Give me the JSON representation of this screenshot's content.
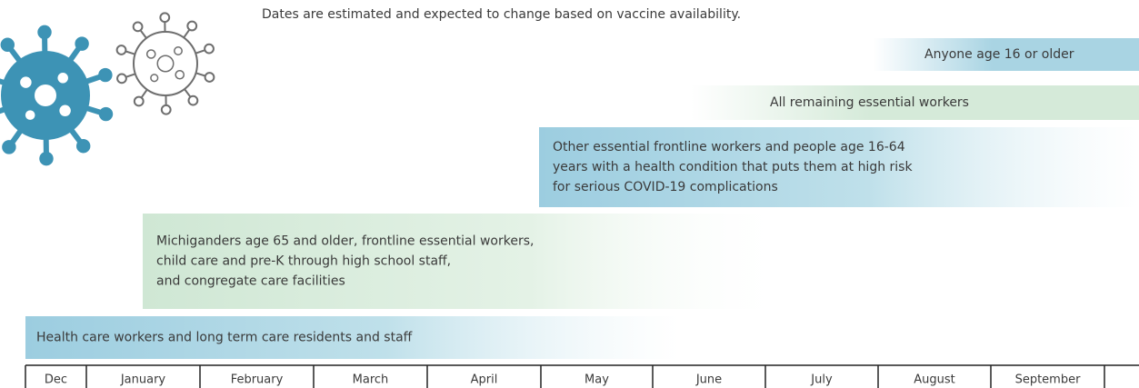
{
  "note": "Dates are estimated and expected to change based on vaccine availability.",
  "phases": [
    {
      "lines": [
        "Anyone age 16 or older"
      ]
    },
    {
      "lines": [
        "All remaining essential workers"
      ]
    },
    {
      "lines": [
        "Other essential frontline workers and people age 16-64",
        "years with a health condition that puts them at high risk",
        "for serious COVID-19 complications"
      ]
    },
    {
      "lines": [
        "Michiganders age 65 and older, frontline essential workers,",
        "child care and pre-K through high school staff,",
        "and congregate care facilities"
      ]
    },
    {
      "lines": [
        "Health care workers and long term care residents and staff"
      ]
    }
  ],
  "months": [
    "Dec",
    "January",
    "February",
    "March",
    "April",
    "May",
    "June",
    "July",
    "August",
    "September"
  ]
}
